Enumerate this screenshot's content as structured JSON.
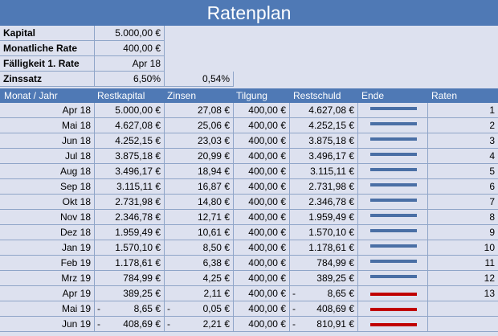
{
  "title": "Ratenplan",
  "info": [
    {
      "label": "Kapital",
      "value": "5.000,00 €",
      "extra": ""
    },
    {
      "label": "Monatliche Rate",
      "value": "400,00 €",
      "extra": ""
    },
    {
      "label": "Fälligkeit 1. Rate",
      "value": "Apr 18",
      "extra": ""
    },
    {
      "label": "Zinssatz",
      "value": "6,50%",
      "extra": "0,54%"
    }
  ],
  "columns": [
    "Monat / Jahr",
    "Restkapital",
    "Zinsen",
    "Tilgung",
    "Restschuld",
    "Ende",
    "Raten"
  ],
  "rows": [
    {
      "month": "Apr 18",
      "kap": "5.000,00 €",
      "zins": "27,08 €",
      "tilg": "400,00 €",
      "rest": "4.627,08 €",
      "end": "blue",
      "raten": "1"
    },
    {
      "month": "Mai 18",
      "kap": "4.627,08 €",
      "zins": "25,06 €",
      "tilg": "400,00 €",
      "rest": "4.252,15 €",
      "end": "blue",
      "raten": "2"
    },
    {
      "month": "Jun 18",
      "kap": "4.252,15 €",
      "zins": "23,03 €",
      "tilg": "400,00 €",
      "rest": "3.875,18 €",
      "end": "blue",
      "raten": "3"
    },
    {
      "month": "Jul 18",
      "kap": "3.875,18 €",
      "zins": "20,99 €",
      "tilg": "400,00 €",
      "rest": "3.496,17 €",
      "end": "blue",
      "raten": "4"
    },
    {
      "month": "Aug 18",
      "kap": "3.496,17 €",
      "zins": "18,94 €",
      "tilg": "400,00 €",
      "rest": "3.115,11 €",
      "end": "blue",
      "raten": "5"
    },
    {
      "month": "Sep 18",
      "kap": "3.115,11 €",
      "zins": "16,87 €",
      "tilg": "400,00 €",
      "rest": "2.731,98 €",
      "end": "blue",
      "raten": "6"
    },
    {
      "month": "Okt 18",
      "kap": "2.731,98 €",
      "zins": "14,80 €",
      "tilg": "400,00 €",
      "rest": "2.346,78 €",
      "end": "blue",
      "raten": "7"
    },
    {
      "month": "Nov 18",
      "kap": "2.346,78 €",
      "zins": "12,71 €",
      "tilg": "400,00 €",
      "rest": "1.959,49 €",
      "end": "blue",
      "raten": "8"
    },
    {
      "month": "Dez 18",
      "kap": "1.959,49 €",
      "zins": "10,61 €",
      "tilg": "400,00 €",
      "rest": "1.570,10 €",
      "end": "blue",
      "raten": "9"
    },
    {
      "month": "Jan 19",
      "kap": "1.570,10 €",
      "zins": "8,50 €",
      "tilg": "400,00 €",
      "rest": "1.178,61 €",
      "end": "blue",
      "raten": "10"
    },
    {
      "month": "Feb 19",
      "kap": "1.178,61 €",
      "zins": "6,38 €",
      "tilg": "400,00 €",
      "rest": "784,99 €",
      "end": "blue",
      "raten": "11"
    },
    {
      "month": "Mrz 19",
      "kap": "784,99 €",
      "zins": "4,25 €",
      "tilg": "400,00 €",
      "rest": "389,25 €",
      "end": "blue",
      "raten": "12"
    },
    {
      "month": "Apr 19",
      "kap": "389,25 €",
      "zins": "2,11 €",
      "tilg": "400,00 €",
      "rest": "8,65 €",
      "rest_neg": "-",
      "end": "red",
      "raten": "13"
    },
    {
      "month": "Mai 19",
      "kap": "8,65 €",
      "kap_neg": "-",
      "zins": "0,05 €",
      "zins_neg": "-",
      "tilg": "400,00 €",
      "rest": "408,69 €",
      "rest_neg": "-",
      "end": "red",
      "raten": ""
    },
    {
      "month": "Jun 19",
      "kap": "408,69 €",
      "kap_neg": "-",
      "zins": "2,21 €",
      "zins_neg": "-",
      "tilg": "400,00 €",
      "rest": "810,91 €",
      "rest_neg": "-",
      "end": "red",
      "raten": ""
    }
  ],
  "colors": {
    "header": "#4f79b5",
    "bar_blue": "#4a6fa5",
    "bar_red": "#c00000",
    "background": "#dde1ef"
  }
}
